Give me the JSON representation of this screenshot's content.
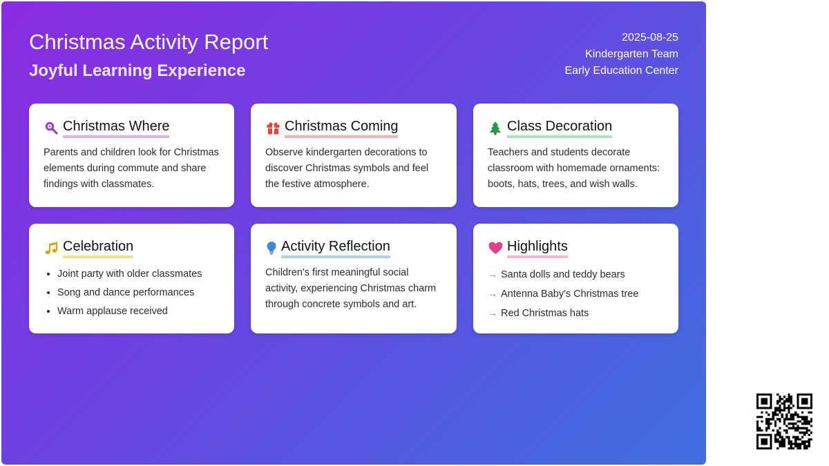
{
  "header": {
    "title": "Christmas Activity Report",
    "subtitle": "Joyful Learning Experience",
    "date": "2025-08-25",
    "team": "Kindergarten Team",
    "center": "Early Education Center"
  },
  "cards": [
    {
      "title": "Christmas Where",
      "icon": "magnifier-icon",
      "accent": "#d8b4f0",
      "text": "Parents and children look for Christmas elements during commute and share findings with classmates."
    },
    {
      "title": "Christmas Coming",
      "icon": "gift-icon",
      "accent": "#f4b4b4",
      "text": "Observe kindergarten decorations to discover Christmas symbols and feel the festive atmosphere."
    },
    {
      "title": "Class Decoration",
      "icon": "christmas-tree-icon",
      "accent": "#a8e6b8",
      "text": "Teachers and students decorate classroom with homemade ornaments: boots, hats, trees, and wish walls."
    },
    {
      "title": "Celebration",
      "icon": "music-note-icon",
      "accent": "#f5e08a",
      "items": [
        "Joint party with older classmates",
        "Song and dance performances",
        "Warm applause received"
      ]
    },
    {
      "title": "Activity Reflection",
      "icon": "light-bulb-icon",
      "accent": "#b4cdee",
      "text": "Children's first meaningful social activity, experiencing Christmas charm through concrete symbols and art."
    },
    {
      "title": "Highlights",
      "icon": "heart-icon",
      "accent": "#f6b4d8",
      "items": [
        "Santa dolls and teddy bears",
        "Antenna Baby's Christmas tree",
        "Red Christmas hats"
      ]
    }
  ],
  "qr": {
    "icon": "qr-code-icon"
  }
}
